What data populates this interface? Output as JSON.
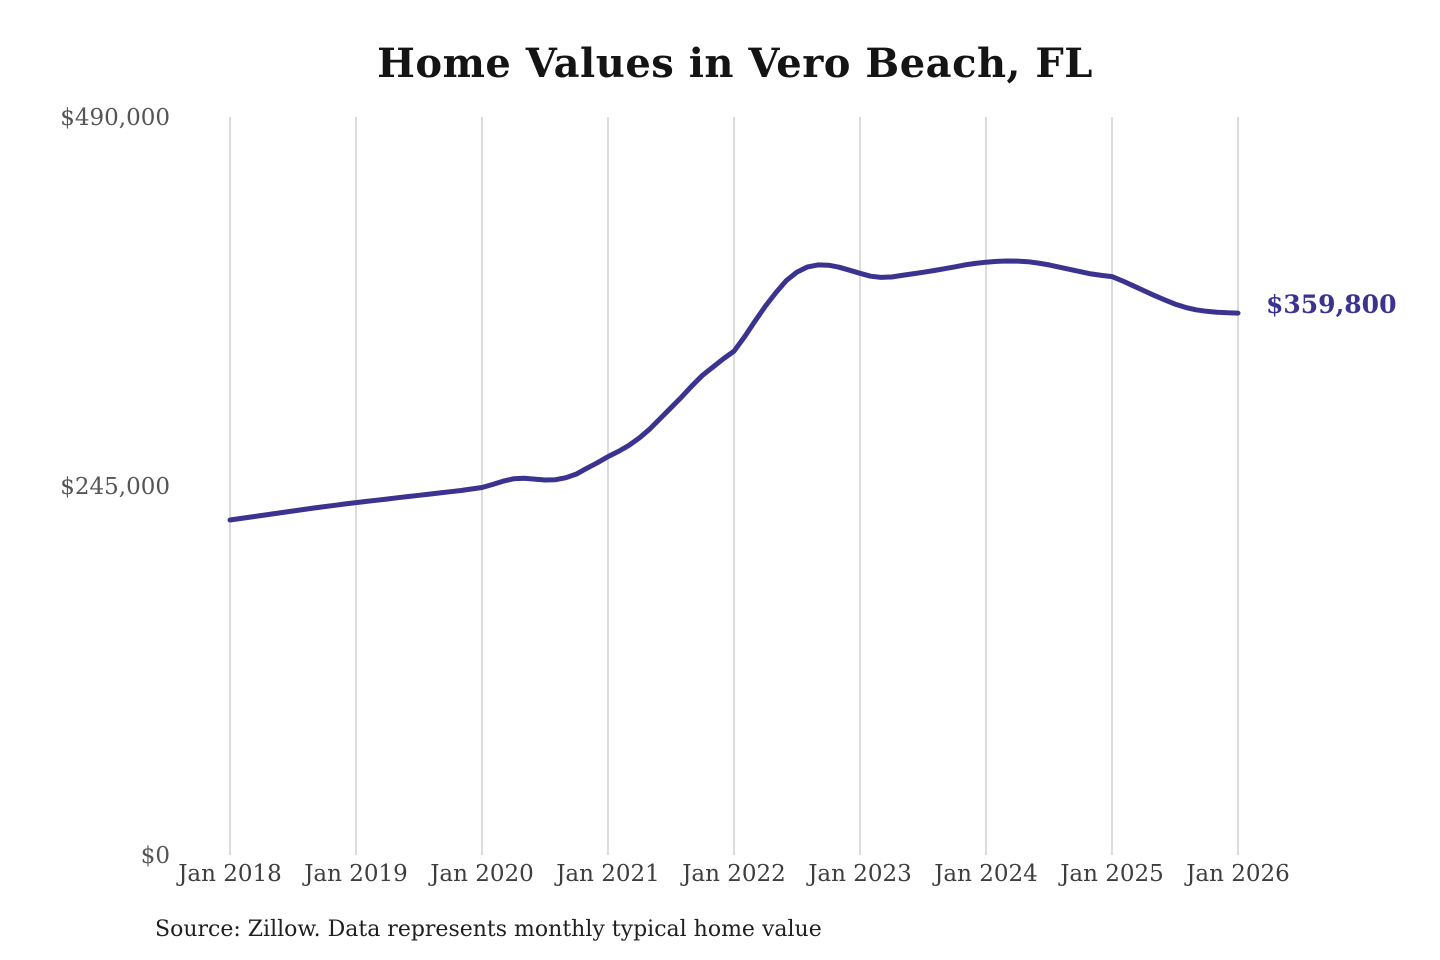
{
  "title": "Home Values in Vero Beach, FL",
  "source_note": "Source: Zillow. Data represents monthly typical home value",
  "colors": {
    "line": "#3a338f",
    "grid": "#c9c9c9",
    "x_tick_text": "#3e3e3e",
    "y_tick_text": "#555555",
    "title_text": "#141414",
    "source_text": "#1f1f1f",
    "background": "#ffffff"
  },
  "chart_data": {
    "type": "line",
    "title": "Home Values in Vero Beach, FL",
    "xlabel": "",
    "ylabel": "",
    "ylim": [
      0,
      490000
    ],
    "grid": "vertical-only",
    "legend": "none",
    "x_ticks": [
      "Jan 2018",
      "Jan 2019",
      "Jan 2020",
      "Jan 2021",
      "Jan 2022",
      "Jan 2023",
      "Jan 2024",
      "Jan 2025",
      "Jan 2026"
    ],
    "y_ticks": [
      {
        "label": "$0",
        "value": 0
      },
      {
        "label": "$245,000",
        "value": 245000
      },
      {
        "label": "$490,000",
        "value": 490000
      }
    ],
    "end_annotation": {
      "text": "$359,800",
      "value": 359800
    },
    "series": [
      {
        "name": "Monthly typical home value",
        "interval": "monthly",
        "x_start": "Jan 2018",
        "x_end": "Jan 2026",
        "values": [
          222400,
          223400,
          224400,
          225400,
          226400,
          227400,
          228400,
          229400,
          230400,
          231300,
          232200,
          233100,
          234000,
          234800,
          235600,
          236400,
          237200,
          238000,
          238800,
          239600,
          240400,
          241200,
          242000,
          243000,
          244000,
          246000,
          248200,
          249800,
          250200,
          249600,
          249000,
          249200,
          250500,
          253000,
          256800,
          260500,
          264500,
          268000,
          272000,
          277000,
          283000,
          290000,
          297000,
          304000,
          311500,
          318500,
          324000,
          329500,
          334500,
          344000,
          354500,
          364500,
          373500,
          381500,
          387000,
          390500,
          391800,
          391600,
          390300,
          388300,
          386200,
          384300,
          383500,
          383800,
          384800,
          385800,
          386900,
          388000,
          389200,
          390500,
          391800,
          392800,
          393600,
          394100,
          394400,
          394300,
          393900,
          393000,
          391800,
          390300,
          388800,
          387300,
          385800,
          384800,
          384000,
          381200,
          378000,
          374800,
          371600,
          368600,
          365800,
          363600,
          362000,
          361000,
          360400,
          360000,
          359800
        ]
      }
    ]
  }
}
